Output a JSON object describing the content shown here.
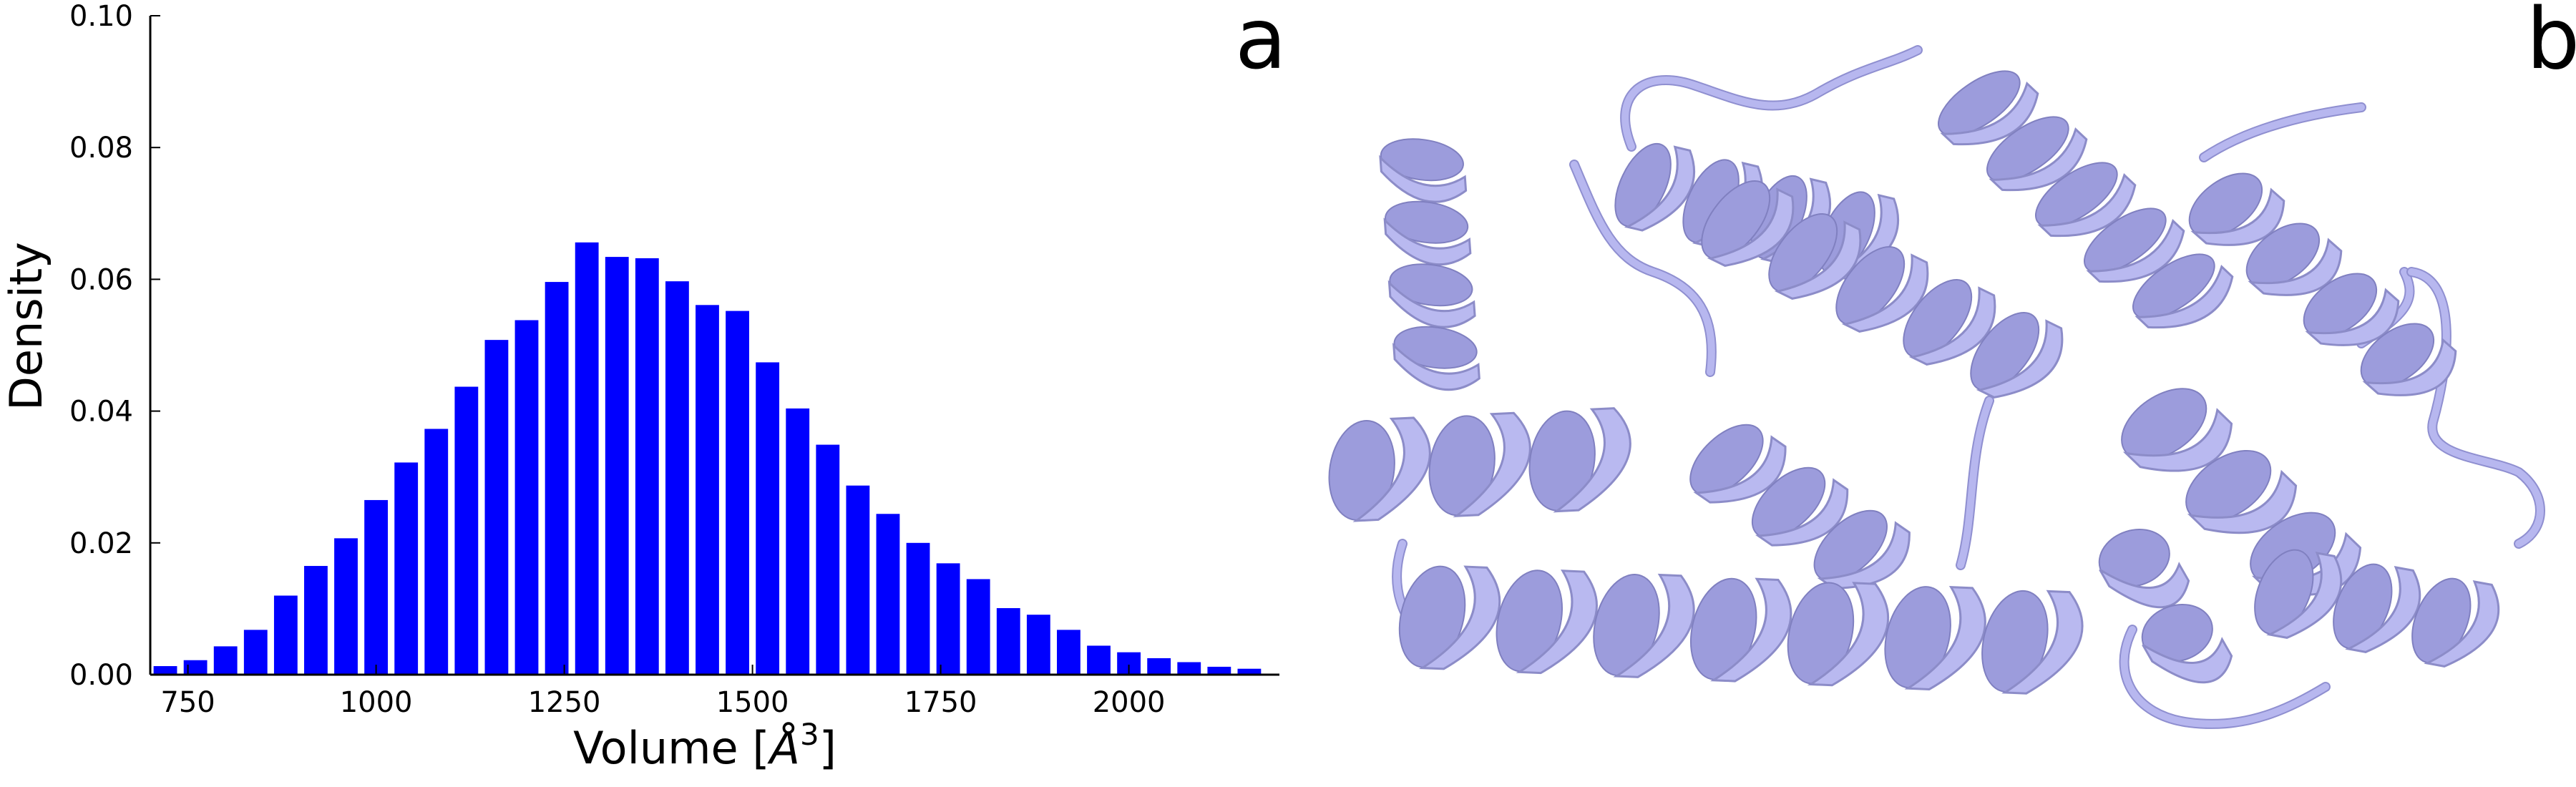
{
  "panel_labels": {
    "a": "a",
    "b": "b"
  },
  "chart_data": {
    "type": "bar",
    "title": "",
    "xlabel": "Volume [Å³]",
    "xlabel_base": "Volume [",
    "xlabel_unit": "Å",
    "xlabel_exp": "3",
    "xlabel_close": "]",
    "ylabel": "Density",
    "xlim": [
      700,
      2200
    ],
    "ylim": [
      0,
      0.1
    ],
    "bin_width": 40,
    "grid": false,
    "legend": "none",
    "bar_color": "#0000ff",
    "x_ticks": [
      "750",
      "1000",
      "1250",
      "1500",
      "1750",
      "2000"
    ],
    "y_ticks": [
      "0.00",
      "0.02",
      "0.04",
      "0.06",
      "0.08",
      "0.10"
    ],
    "x_tick_values": [
      750,
      1000,
      1250,
      1500,
      1750,
      2000
    ],
    "y_tick_values": [
      0,
      0.02,
      0.04,
      0.06,
      0.08,
      0.1
    ],
    "bins": [
      {
        "x": 720,
        "y": 0.0013
      },
      {
        "x": 760,
        "y": 0.0022
      },
      {
        "x": 800,
        "y": 0.0043
      },
      {
        "x": 840,
        "y": 0.0068
      },
      {
        "x": 880,
        "y": 0.012
      },
      {
        "x": 920,
        "y": 0.0165
      },
      {
        "x": 960,
        "y": 0.0207
      },
      {
        "x": 1000,
        "y": 0.0265
      },
      {
        "x": 1040,
        "y": 0.0322
      },
      {
        "x": 1080,
        "y": 0.0373
      },
      {
        "x": 1120,
        "y": 0.0437
      },
      {
        "x": 1160,
        "y": 0.0508
      },
      {
        "x": 1200,
        "y": 0.0538
      },
      {
        "x": 1240,
        "y": 0.0596
      },
      {
        "x": 1280,
        "y": 0.0656
      },
      {
        "x": 1320,
        "y": 0.0634
      },
      {
        "x": 1360,
        "y": 0.0632
      },
      {
        "x": 1400,
        "y": 0.0597
      },
      {
        "x": 1440,
        "y": 0.0561
      },
      {
        "x": 1480,
        "y": 0.0552
      },
      {
        "x": 1520,
        "y": 0.0474
      },
      {
        "x": 1560,
        "y": 0.0404
      },
      {
        "x": 1600,
        "y": 0.0349
      },
      {
        "x": 1640,
        "y": 0.0287
      },
      {
        "x": 1680,
        "y": 0.0244
      },
      {
        "x": 1720,
        "y": 0.02
      },
      {
        "x": 1760,
        "y": 0.0169
      },
      {
        "x": 1800,
        "y": 0.0145
      },
      {
        "x": 1840,
        "y": 0.0101
      },
      {
        "x": 1880,
        "y": 0.0091
      },
      {
        "x": 1920,
        "y": 0.0068
      },
      {
        "x": 1960,
        "y": 0.0044
      },
      {
        "x": 2000,
        "y": 0.0034
      },
      {
        "x": 2040,
        "y": 0.0025
      },
      {
        "x": 2080,
        "y": 0.0019
      },
      {
        "x": 2120,
        "y": 0.0012
      },
      {
        "x": 2160,
        "y": 0.0009
      }
    ]
  },
  "protein_image": {
    "type": "cartoon-ribbon",
    "color": "#b7b7ef"
  }
}
